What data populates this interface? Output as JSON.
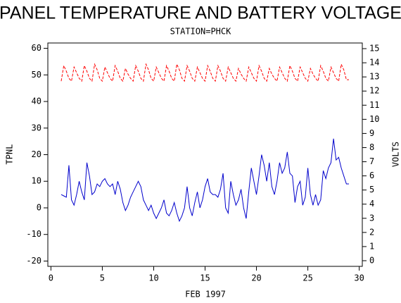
{
  "chart_data": {
    "type": "line",
    "title": "PANEL TEMPERATURE AND BATTERY VOLTAGE",
    "subtitle": "STATION=PHCK",
    "x_label": "FEB 1997",
    "y_label": "TPNL",
    "y2_label": "VOLTS",
    "x": [
      1,
      1.25,
      1.5,
      1.75,
      2,
      2.25,
      2.5,
      2.75,
      3,
      3.25,
      3.5,
      3.75,
      4,
      4.25,
      4.5,
      4.75,
      5,
      5.25,
      5.5,
      5.75,
      6,
      6.25,
      6.5,
      6.75,
      7,
      7.25,
      7.5,
      7.75,
      8,
      8.25,
      8.5,
      8.75,
      9,
      9.25,
      9.5,
      9.75,
      10,
      10.25,
      10.5,
      10.75,
      11,
      11.25,
      11.5,
      11.75,
      12,
      12.25,
      12.5,
      12.75,
      13,
      13.25,
      13.5,
      13.75,
      14,
      14.25,
      14.5,
      14.75,
      15,
      15.25,
      15.5,
      15.75,
      16,
      16.25,
      16.5,
      16.75,
      17,
      17.25,
      17.5,
      17.75,
      18,
      18.25,
      18.5,
      18.75,
      19,
      19.25,
      19.5,
      19.75,
      20,
      20.25,
      20.5,
      20.75,
      21,
      21.25,
      21.5,
      21.75,
      22,
      22.25,
      22.5,
      22.75,
      23,
      23.25,
      23.5,
      23.75,
      24,
      24.25,
      24.5,
      24.75,
      25,
      25.25,
      25.5,
      25.75,
      26,
      26.25,
      26.5,
      26.75,
      27,
      27.25,
      27.5,
      27.75,
      28,
      28.25,
      28.5,
      28.75,
      29
    ],
    "series": [
      {
        "color": "#0000cc",
        "dash": false,
        "values": [
          5,
          4.5,
          4,
          16,
          3,
          1,
          5,
          10,
          6,
          3,
          17,
          12,
          5,
          6,
          9,
          8,
          10,
          11,
          9,
          8,
          9,
          5,
          10,
          7,
          2,
          -1,
          1,
          4,
          6,
          8,
          10,
          8,
          3,
          1,
          -1,
          1,
          -2,
          -4,
          -2,
          0,
          3,
          -2,
          -3,
          -1,
          2,
          -2,
          -5,
          -3,
          0,
          8,
          0,
          -3,
          2,
          6,
          0,
          3,
          8,
          11,
          6,
          5,
          5,
          4,
          7,
          13,
          0,
          -2,
          10,
          5,
          1,
          3,
          7,
          0,
          -4,
          6,
          15,
          10,
          5,
          12,
          20,
          16,
          10,
          17,
          8,
          5,
          10,
          17,
          13,
          15,
          21,
          13,
          12,
          2,
          8,
          10,
          1,
          4,
          15,
          5,
          1,
          5,
          1,
          3,
          14,
          11,
          15,
          17,
          26,
          18,
          19,
          15,
          12,
          9,
          9
        ]
      },
      {
        "color": "#ff0000",
        "dash": true,
        "axis": "y2",
        "values": [
          12.7,
          13.8,
          13.4,
          12.9,
          12.7,
          13.7,
          13.3,
          12.9,
          12.7,
          13.8,
          13.4,
          12.9,
          12.7,
          13.9,
          13.5,
          12.9,
          12.7,
          13.7,
          13.3,
          12.9,
          12.7,
          13.8,
          13.4,
          12.9,
          12.7,
          13.6,
          13.2,
          12.9,
          12.7,
          13.8,
          13.4,
          12.9,
          12.7,
          13.9,
          13.5,
          12.9,
          12.7,
          13.7,
          13.3,
          12.9,
          12.7,
          13.8,
          13.4,
          12.9,
          12.7,
          13.9,
          13.5,
          12.9,
          12.7,
          13.8,
          13.4,
          12.9,
          12.7,
          13.7,
          13.3,
          12.9,
          12.7,
          13.8,
          13.4,
          12.9,
          12.7,
          13.8,
          13.4,
          12.9,
          12.7,
          13.7,
          13.3,
          12.9,
          12.7,
          13.6,
          13.2,
          12.9,
          12.7,
          13.7,
          13.3,
          12.9,
          12.7,
          13.8,
          13.4,
          12.9,
          12.7,
          13.6,
          13.2,
          12.9,
          12.7,
          13.7,
          13.3,
          12.9,
          12.7,
          13.8,
          13.4,
          12.9,
          12.7,
          13.7,
          13.3,
          12.9,
          12.7,
          13.6,
          13.2,
          12.9,
          12.7,
          13.8,
          13.4,
          12.9,
          12.7,
          13.7,
          13.3,
          12.9,
          12.7,
          13.9,
          13.5,
          12.8,
          12.8
        ]
      }
    ],
    "xlim": [
      -0.3,
      30.3
    ],
    "xticks": [
      0,
      5,
      10,
      15,
      20,
      25,
      30
    ],
    "ylim": [
      -22,
      62
    ],
    "yticks": [
      -20,
      -10,
      0,
      10,
      20,
      30,
      40,
      50,
      60
    ],
    "y2lim": [
      -0.4,
      15.4
    ],
    "y2ticks": [
      0,
      1,
      2,
      3,
      4,
      5,
      6,
      7,
      8,
      9,
      10,
      11,
      12,
      13,
      14,
      15
    ]
  }
}
